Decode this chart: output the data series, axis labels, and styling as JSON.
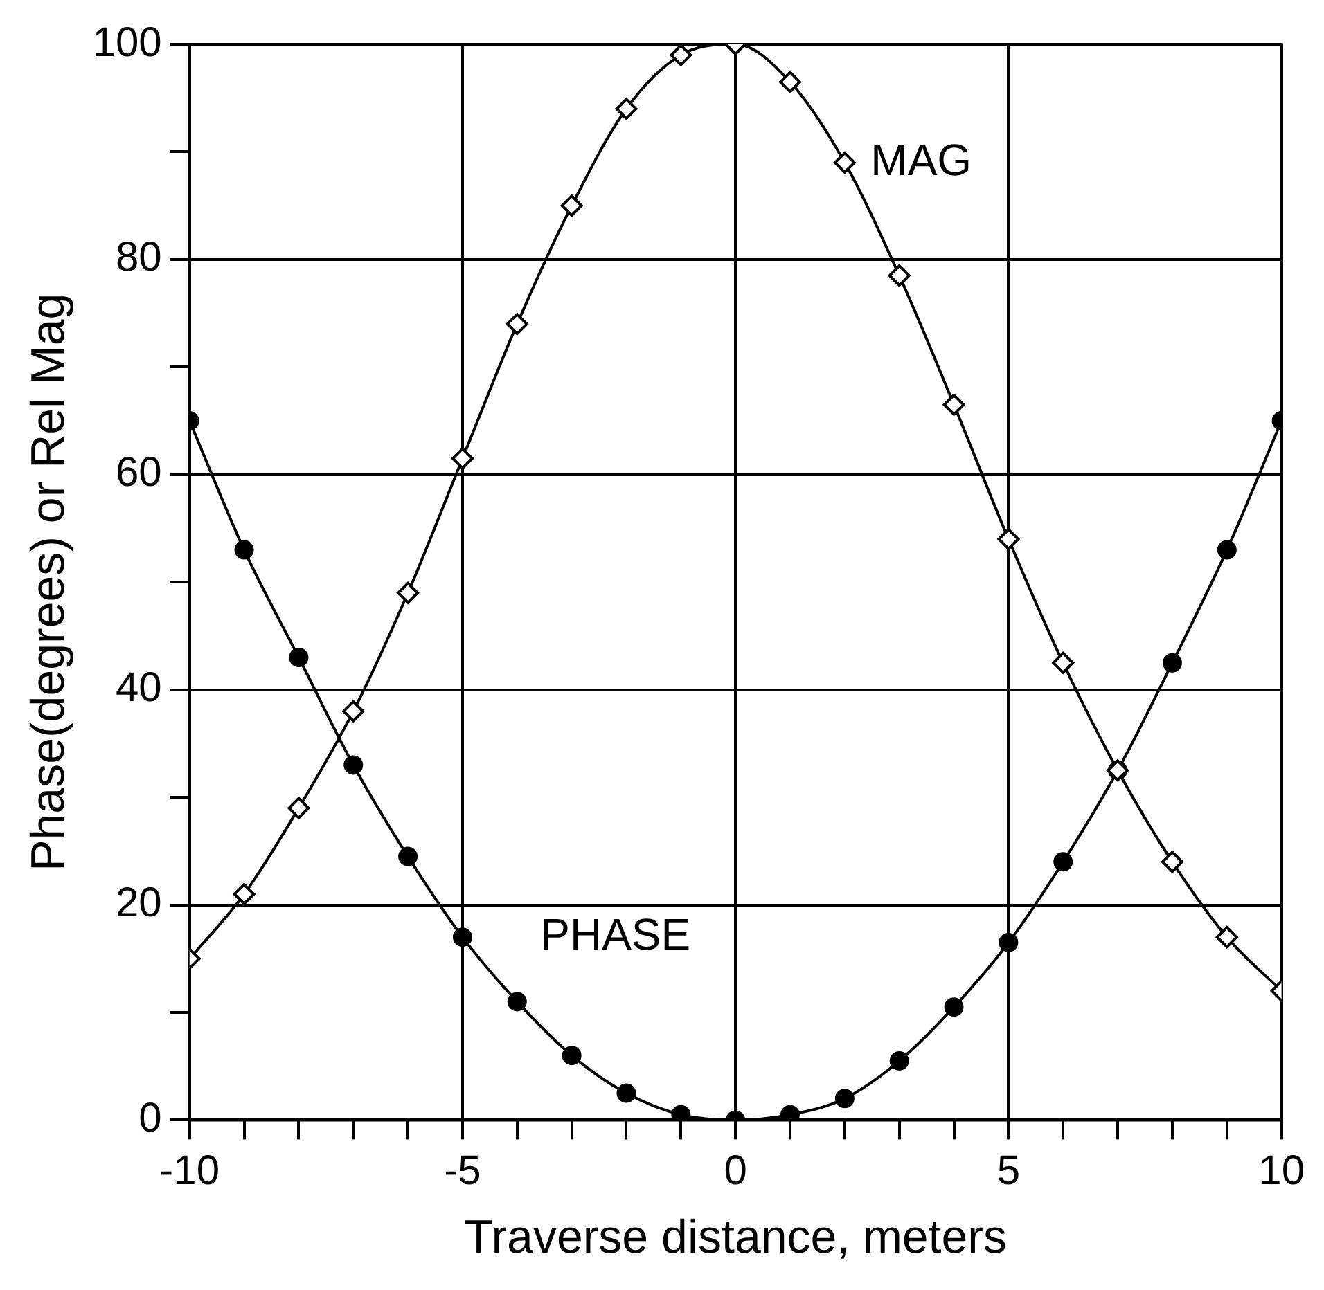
{
  "chart_data": {
    "type": "line",
    "xlabel": "Traverse distance, meters",
    "ylabel": "Phase(degrees) or Rel Mag",
    "xlim": [
      -10,
      10
    ],
    "xticks": [
      -10,
      {
        "value": -9,
        "label": null
      },
      {
        "value": -8,
        "label": null
      },
      {
        "value": -7,
        "label": null
      },
      {
        "value": -6,
        "label": null
      },
      -5,
      {
        "value": -4,
        "label": null
      },
      {
        "value": -3,
        "label": null
      },
      {
        "value": -2,
        "label": null
      },
      {
        "value": -1,
        "label": null
      },
      0,
      {
        "value": 1,
        "label": null
      },
      {
        "value": 2,
        "label": null
      },
      {
        "value": 3,
        "label": null
      },
      {
        "value": 4,
        "label": null
      },
      5,
      {
        "value": 6,
        "label": null
      },
      {
        "value": 7,
        "label": null
      },
      {
        "value": 8,
        "label": null
      },
      {
        "value": 9,
        "label": null
      },
      10
    ],
    "ylim": [
      0,
      100
    ],
    "yticks": [
      0,
      {
        "value": 10,
        "label": null
      },
      20,
      {
        "value": 30,
        "label": null
      },
      40,
      {
        "value": 50,
        "label": null
      },
      60,
      {
        "value": 70,
        "label": null
      },
      80,
      {
        "value": 90,
        "label": null
      },
      100
    ],
    "grid": true,
    "legend": false,
    "x": [
      -10,
      -9,
      -8,
      -7,
      -6,
      -5,
      -4,
      -3,
      -2,
      -1,
      0,
      1,
      2,
      3,
      4,
      5,
      6,
      7,
      8,
      9,
      10
    ],
    "series": [
      {
        "name": "MAG",
        "color": "#000000",
        "marker": "diamond",
        "values": [
          15,
          21,
          29,
          38,
          49,
          61.5,
          74,
          85,
          94,
          99,
          100,
          96.5,
          89,
          78.5,
          66.5,
          54,
          42.5,
          32.5,
          24,
          17,
          12
        ]
      },
      {
        "name": "PHASE",
        "color": "#000000",
        "marker": "circle",
        "values": [
          65,
          53,
          43,
          33,
          24.5,
          17,
          11,
          6,
          2.5,
          0.5,
          0,
          0.5,
          2,
          5.5,
          10.5,
          16.5,
          24,
          32.5,
          42.5,
          53,
          65
        ]
      }
    ]
  }
}
